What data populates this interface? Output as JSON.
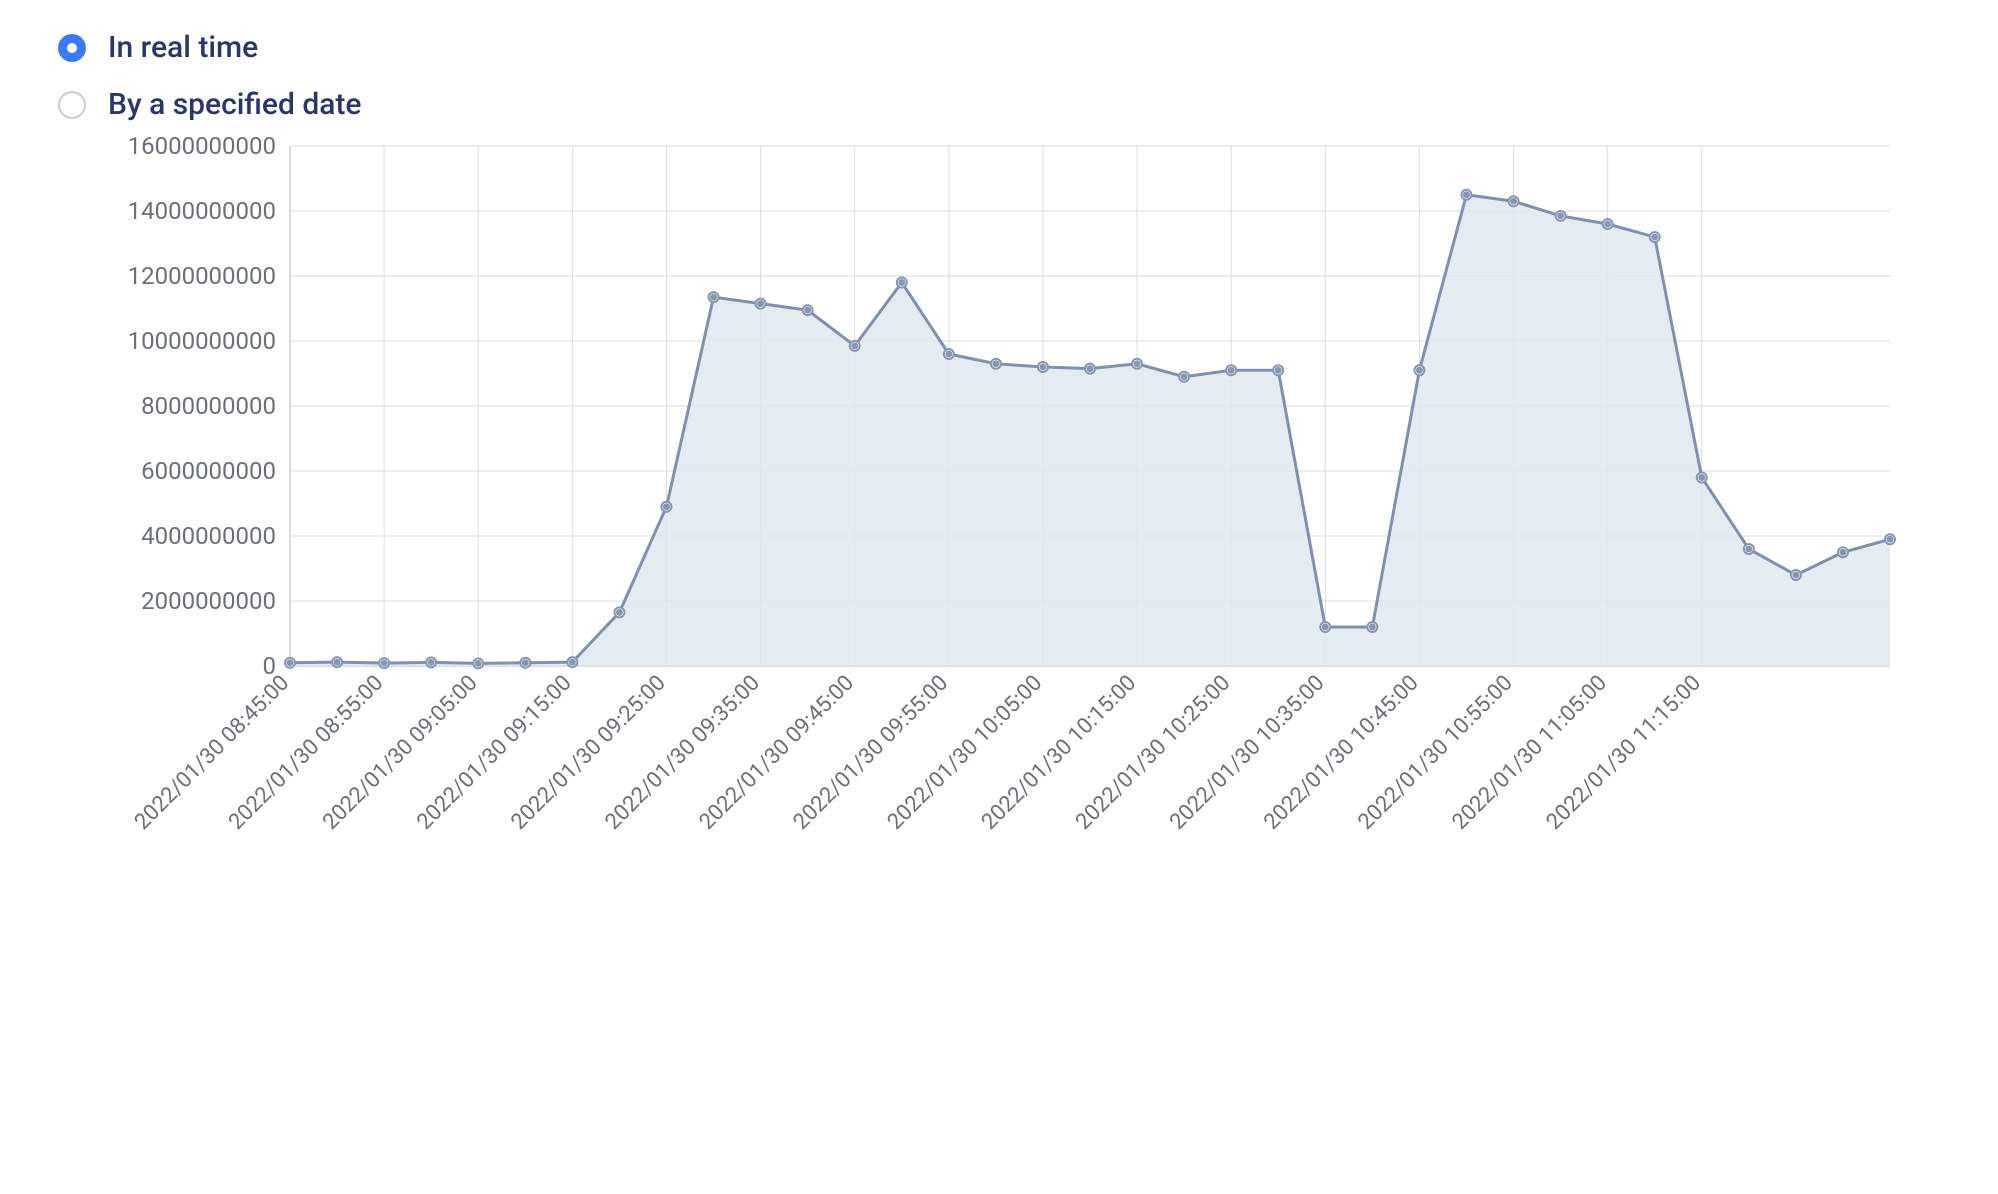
{
  "accent_color": "#3a7bfd",
  "radio_label_color": "#2b3668",
  "radios": {
    "options": [
      {
        "label": "In real time",
        "selected": true
      },
      {
        "label": "By a specified date",
        "selected": false
      }
    ]
  },
  "chart": {
    "type": "area",
    "background_color": "#ffffff",
    "grid_color": "#dcdde2",
    "border_color": "#b9bcc6",
    "line_color": "#8090ad",
    "area_fill": "#dfe7ef",
    "area_opacity": 0.85,
    "marker_color": "#8797b2",
    "marker_radius": 5,
    "line_width": 3,
    "axis_label_color": "#6b6f79",
    "ylim": [
      0,
      16000000000
    ],
    "ytick_step": 2000000000,
    "yticks": [
      0,
      2000000000,
      4000000000,
      6000000000,
      8000000000,
      10000000000,
      12000000000,
      14000000000,
      16000000000
    ],
    "xtick_labels": [
      "2022/01/30 08:45:00",
      "2022/01/30 08:55:00",
      "2022/01/30 09:05:00",
      "2022/01/30 09:15:00",
      "2022/01/30 09:25:00",
      "2022/01/30 09:35:00",
      "2022/01/30 09:45:00",
      "2022/01/30 09:55:00",
      "2022/01/30 10:05:00",
      "2022/01/30 10:15:00",
      "2022/01/30 10:25:00",
      "2022/01/30 10:35:00",
      "2022/01/30 10:45:00",
      "2022/01/30 10:55:00",
      "2022/01/30 11:05:00",
      "2022/01/30 11:15:00"
    ],
    "x_values": [
      "08:45",
      "08:50",
      "08:55",
      "09:00",
      "09:05",
      "09:10",
      "09:15",
      "09:20",
      "09:25",
      "09:30",
      "09:35",
      "09:40",
      "09:45",
      "09:50",
      "09:55",
      "10:00",
      "10:05",
      "10:10",
      "10:15",
      "10:20",
      "10:25",
      "10:30",
      "10:35",
      "10:40",
      "10:45",
      "10:50",
      "10:55",
      "11:00",
      "11:05",
      "11:10",
      "11:15"
    ],
    "y_values": [
      100000000,
      120000000,
      90000000,
      110000000,
      80000000,
      100000000,
      120000000,
      1650000000,
      4900000000,
      11350000000,
      11150000000,
      10950000000,
      9850000000,
      11800000000,
      9600000000,
      9300000000,
      9200000000,
      9150000000,
      9300000000,
      8900000000,
      9100000000,
      9100000000,
      1200000000,
      1200000000,
      9100000000,
      14500000000,
      14300000000,
      13850000000,
      13600000000,
      13200000000,
      5800000000
    ],
    "y_values_tail": [
      3600000000,
      2800000000,
      3500000000,
      3900000000
    ],
    "axis_label_fontsize": 24,
    "xtick_rotation_deg": -45
  }
}
